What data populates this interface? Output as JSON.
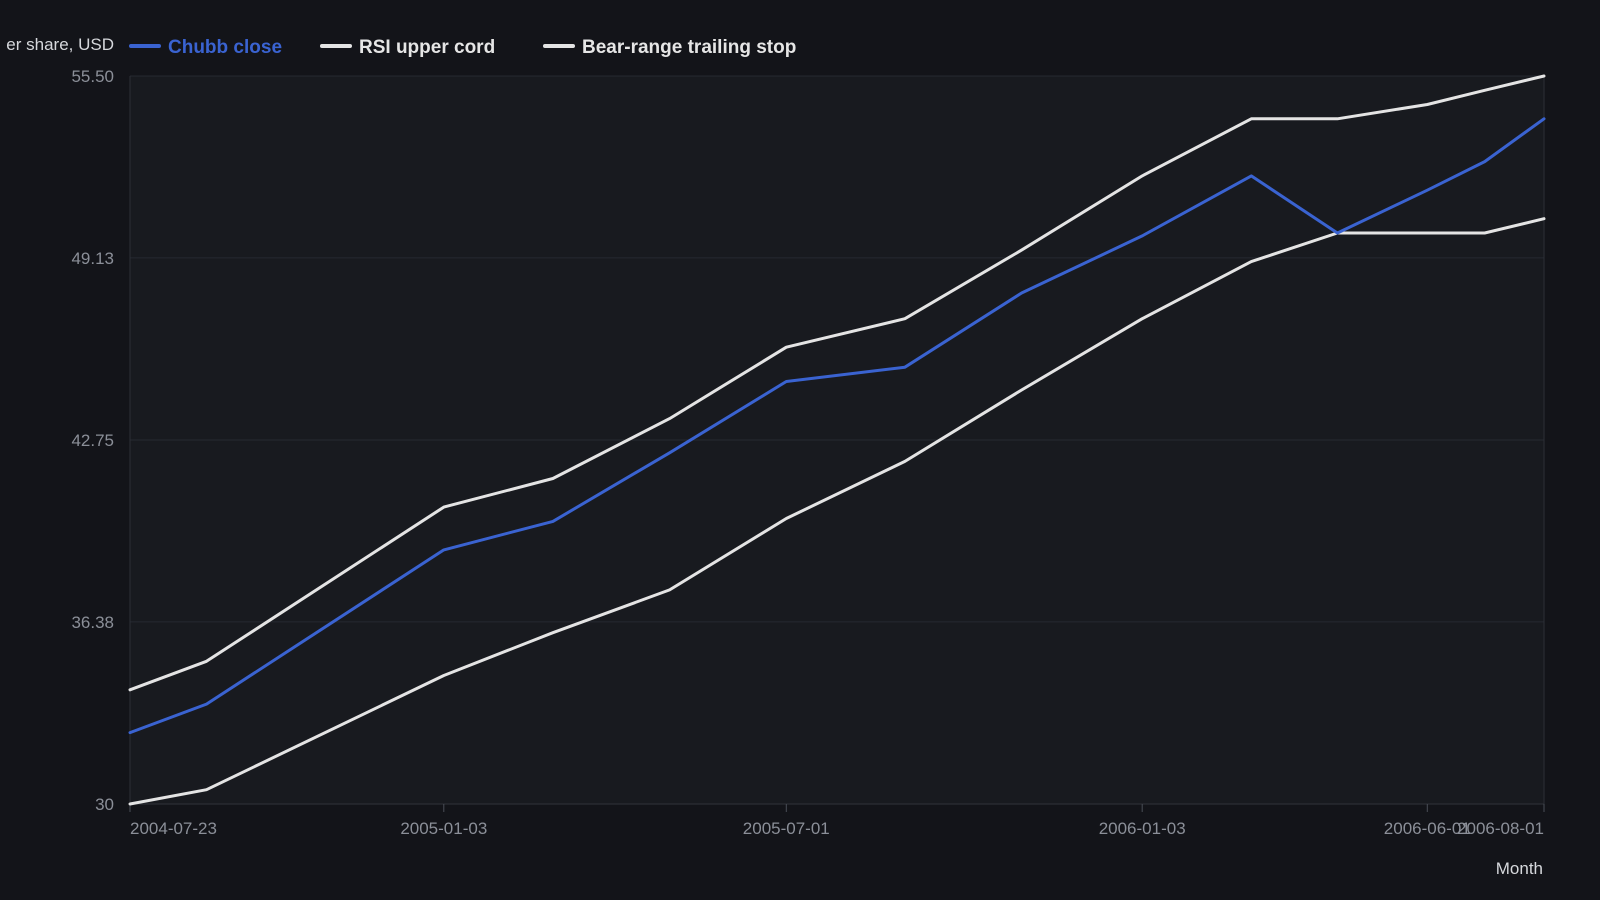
{
  "chart_data": {
    "type": "line",
    "title": "",
    "xlabel": "Month",
    "ylabel": "er share, USD",
    "ylim": [
      30,
      55.5
    ],
    "yticks": [
      "30",
      "36.38",
      "42.75",
      "49.13",
      "55.50"
    ],
    "xlim": [
      "2004-07-23",
      "2006-08-01"
    ],
    "xticks": [
      "2004-07-23",
      "2005-01-03",
      "2005-07-01",
      "2006-01-03",
      "2006-06-01",
      "2006-08-01"
    ],
    "x": [
      "2004-07-23",
      "2004-09-01",
      "2005-01-03",
      "2005-03-01",
      "2005-05-01",
      "2005-07-01",
      "2005-09-01",
      "2005-11-01",
      "2006-01-03",
      "2006-03-01",
      "2006-04-15",
      "2006-06-01",
      "2006-07-01",
      "2006-08-01"
    ],
    "series": [
      {
        "name": "Chubb close",
        "color": "#3a63d1",
        "values": [
          32.5,
          33.5,
          38.9,
          39.9,
          42.3,
          44.8,
          45.3,
          47.9,
          49.9,
          52.0,
          50.0,
          51.5,
          52.5,
          54.0
        ]
      },
      {
        "name": "RSI upper cord",
        "color": "#e4e4e4",
        "values": [
          34.0,
          35.0,
          40.4,
          41.4,
          43.5,
          46.0,
          47.0,
          49.4,
          52.0,
          54.0,
          54.0,
          54.5,
          55.0,
          55.5
        ]
      },
      {
        "name": "Bear-range trailing stop",
        "color": "#e4e4e4",
        "values": [
          30.0,
          30.5,
          34.5,
          36.0,
          37.5,
          40.0,
          42.0,
          44.5,
          47.0,
          49.0,
          50.0,
          50.0,
          50.0,
          50.5
        ]
      }
    ],
    "grid": true,
    "legend_position": "top"
  }
}
